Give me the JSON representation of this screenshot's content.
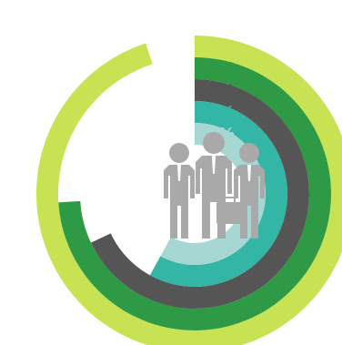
{
  "chart_data": {
    "type": "radial-bar",
    "max": 100,
    "start_angle_deg": 0,
    "direction": "clockwise",
    "series": [
      {
        "value": 95,
        "label": "95%",
        "color": "#c7e354"
      },
      {
        "value": 74,
        "label": "74%",
        "color": "#2f9a45"
      },
      {
        "value": 68,
        "label": "68%",
        "color": "#555555"
      },
      {
        "value": 58,
        "label": "58%",
        "color": "#33b6a6"
      },
      {
        "value": 58,
        "label": "58%",
        "color": "#a7d7d2"
      }
    ],
    "center_icon": "business-people-icon",
    "center_icon_color": "#a9a9a9"
  }
}
